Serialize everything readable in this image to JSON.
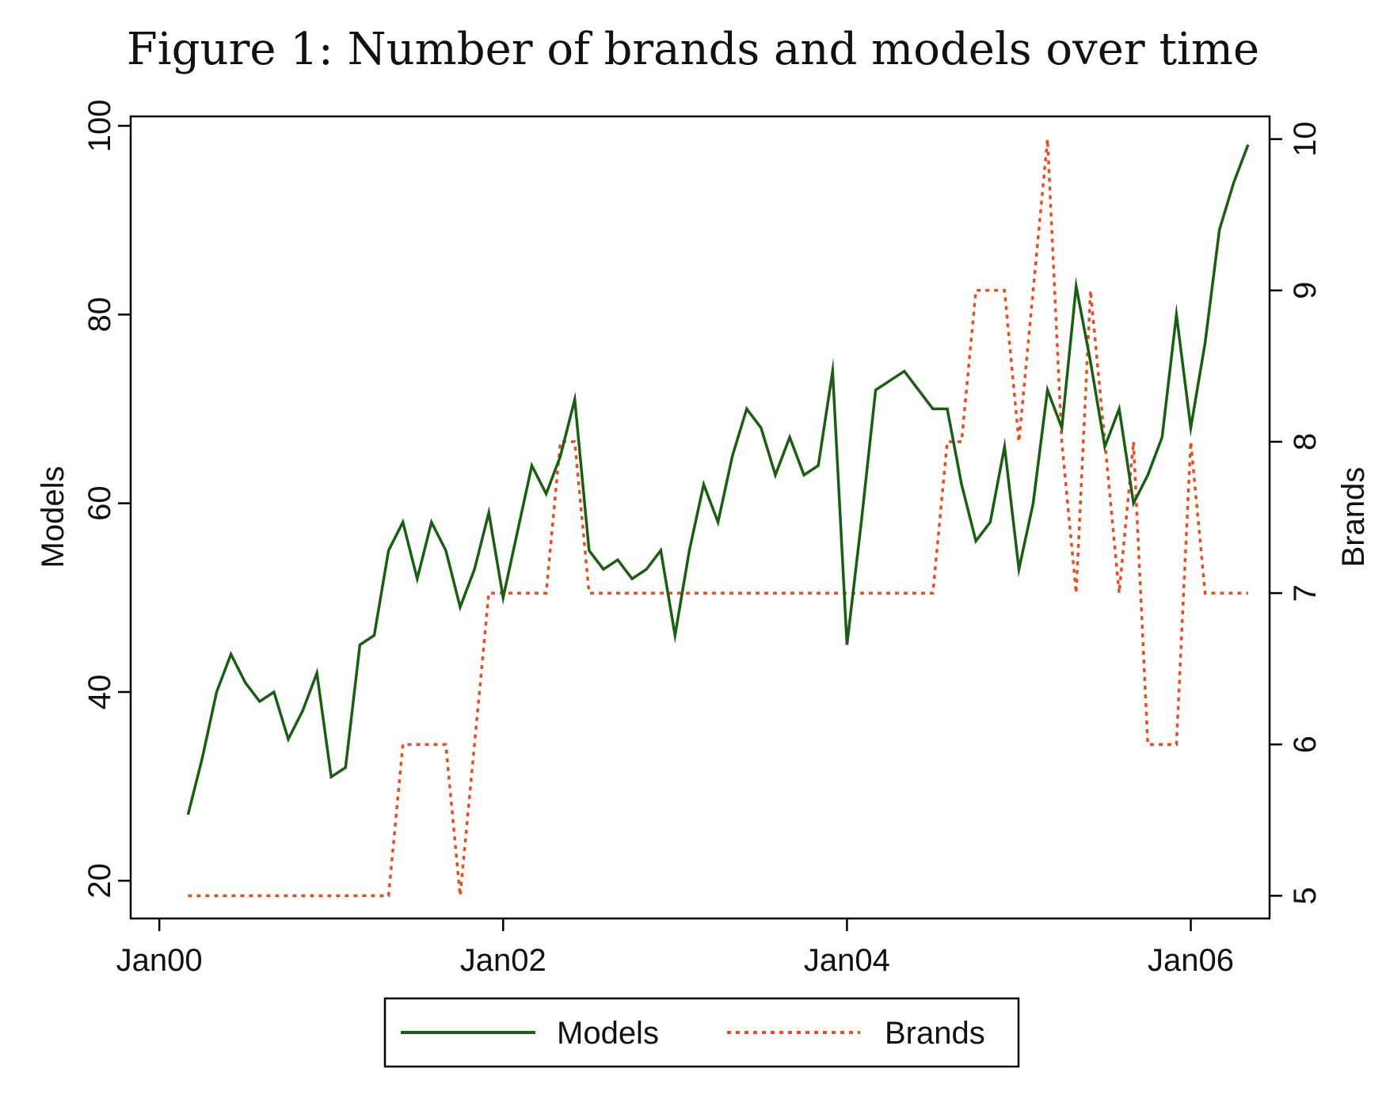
{
  "figure": {
    "title": "Figure 1: Number of brands and models over time"
  },
  "chart_data": {
    "type": "line",
    "x_ticks": [
      "Jan00",
      "Jan02",
      "Jan04",
      "Jan06"
    ],
    "x_tick_months": [
      0,
      24,
      48,
      72
    ],
    "xlim_months": [
      -2,
      77.5
    ],
    "left_axis": {
      "label": "Models",
      "ylim": [
        16,
        101
      ],
      "ticks": [
        20,
        40,
        60,
        80,
        100
      ]
    },
    "right_axis": {
      "label": "Brands",
      "ylim": [
        4.85,
        10.15
      ],
      "ticks": [
        5,
        6,
        7,
        8,
        9,
        10
      ]
    },
    "colors": {
      "models": "#1a5e14",
      "brands": "#ee4b1c"
    },
    "legend": {
      "position": "bottom-center",
      "entries": [
        "Models",
        "Brands"
      ]
    },
    "grid": false,
    "series": [
      {
        "name": "Models",
        "axis": "left",
        "style": "solid",
        "x_months": [
          2,
          3,
          4,
          5,
          6,
          7,
          8,
          9,
          10,
          11,
          12,
          13,
          14,
          15,
          16,
          17,
          18,
          19,
          20,
          21,
          22,
          23,
          24,
          25,
          26,
          27,
          28,
          29,
          30,
          31,
          32,
          33,
          34,
          35,
          36,
          37,
          38,
          39,
          40,
          41,
          42,
          43,
          44,
          45,
          46,
          47,
          48,
          49,
          50,
          51,
          52,
          53,
          54,
          55,
          56,
          57,
          58,
          59,
          60,
          61,
          62,
          63,
          64,
          65,
          66,
          67,
          68,
          69,
          70,
          71,
          72,
          73,
          74,
          75,
          76
        ],
        "values": [
          27,
          33,
          40,
          44,
          41,
          39,
          40,
          35,
          38,
          42,
          31,
          32,
          45,
          46,
          55,
          58,
          52,
          58,
          55,
          49,
          53,
          59,
          50,
          57,
          64,
          61,
          65,
          71,
          55,
          53,
          54,
          52,
          53,
          55,
          46,
          55,
          62,
          58,
          65,
          70,
          68,
          63,
          67,
          63,
          64,
          74,
          45,
          58,
          72,
          73,
          74,
          72,
          70,
          70,
          62,
          56,
          58,
          66,
          53,
          60,
          72,
          68,
          83,
          75,
          66,
          70,
          60,
          63,
          67,
          80,
          68,
          77,
          89,
          94,
          98
        ]
      },
      {
        "name": "Brands",
        "axis": "right",
        "style": "dotted",
        "x_months": [
          2,
          3,
          4,
          5,
          6,
          7,
          8,
          9,
          10,
          11,
          12,
          13,
          14,
          15,
          16,
          17,
          18,
          19,
          20,
          21,
          22,
          23,
          24,
          25,
          26,
          27,
          28,
          29,
          30,
          31,
          32,
          33,
          34,
          35,
          36,
          37,
          38,
          39,
          40,
          41,
          42,
          43,
          44,
          45,
          46,
          47,
          48,
          49,
          50,
          51,
          52,
          53,
          54,
          55,
          56,
          57,
          58,
          59,
          60,
          61,
          62,
          63,
          64,
          65,
          66,
          67,
          68,
          69,
          70,
          71,
          72,
          73,
          74,
          75,
          76
        ],
        "values": [
          5,
          5,
          5,
          5,
          5,
          5,
          5,
          5,
          5,
          5,
          5,
          5,
          5,
          5,
          5,
          6,
          6,
          6,
          6,
          5,
          6,
          7,
          7,
          7,
          7,
          7,
          8,
          8,
          7,
          7,
          7,
          7,
          7,
          7,
          7,
          7,
          7,
          7,
          7,
          7,
          7,
          7,
          7,
          7,
          7,
          7,
          7,
          7,
          7,
          7,
          7,
          7,
          7,
          8,
          8,
          9,
          9,
          9,
          8,
          9,
          10,
          8,
          7,
          9,
          8,
          7,
          8,
          6,
          6,
          6,
          8,
          7,
          7,
          7,
          7
        ]
      }
    ]
  }
}
